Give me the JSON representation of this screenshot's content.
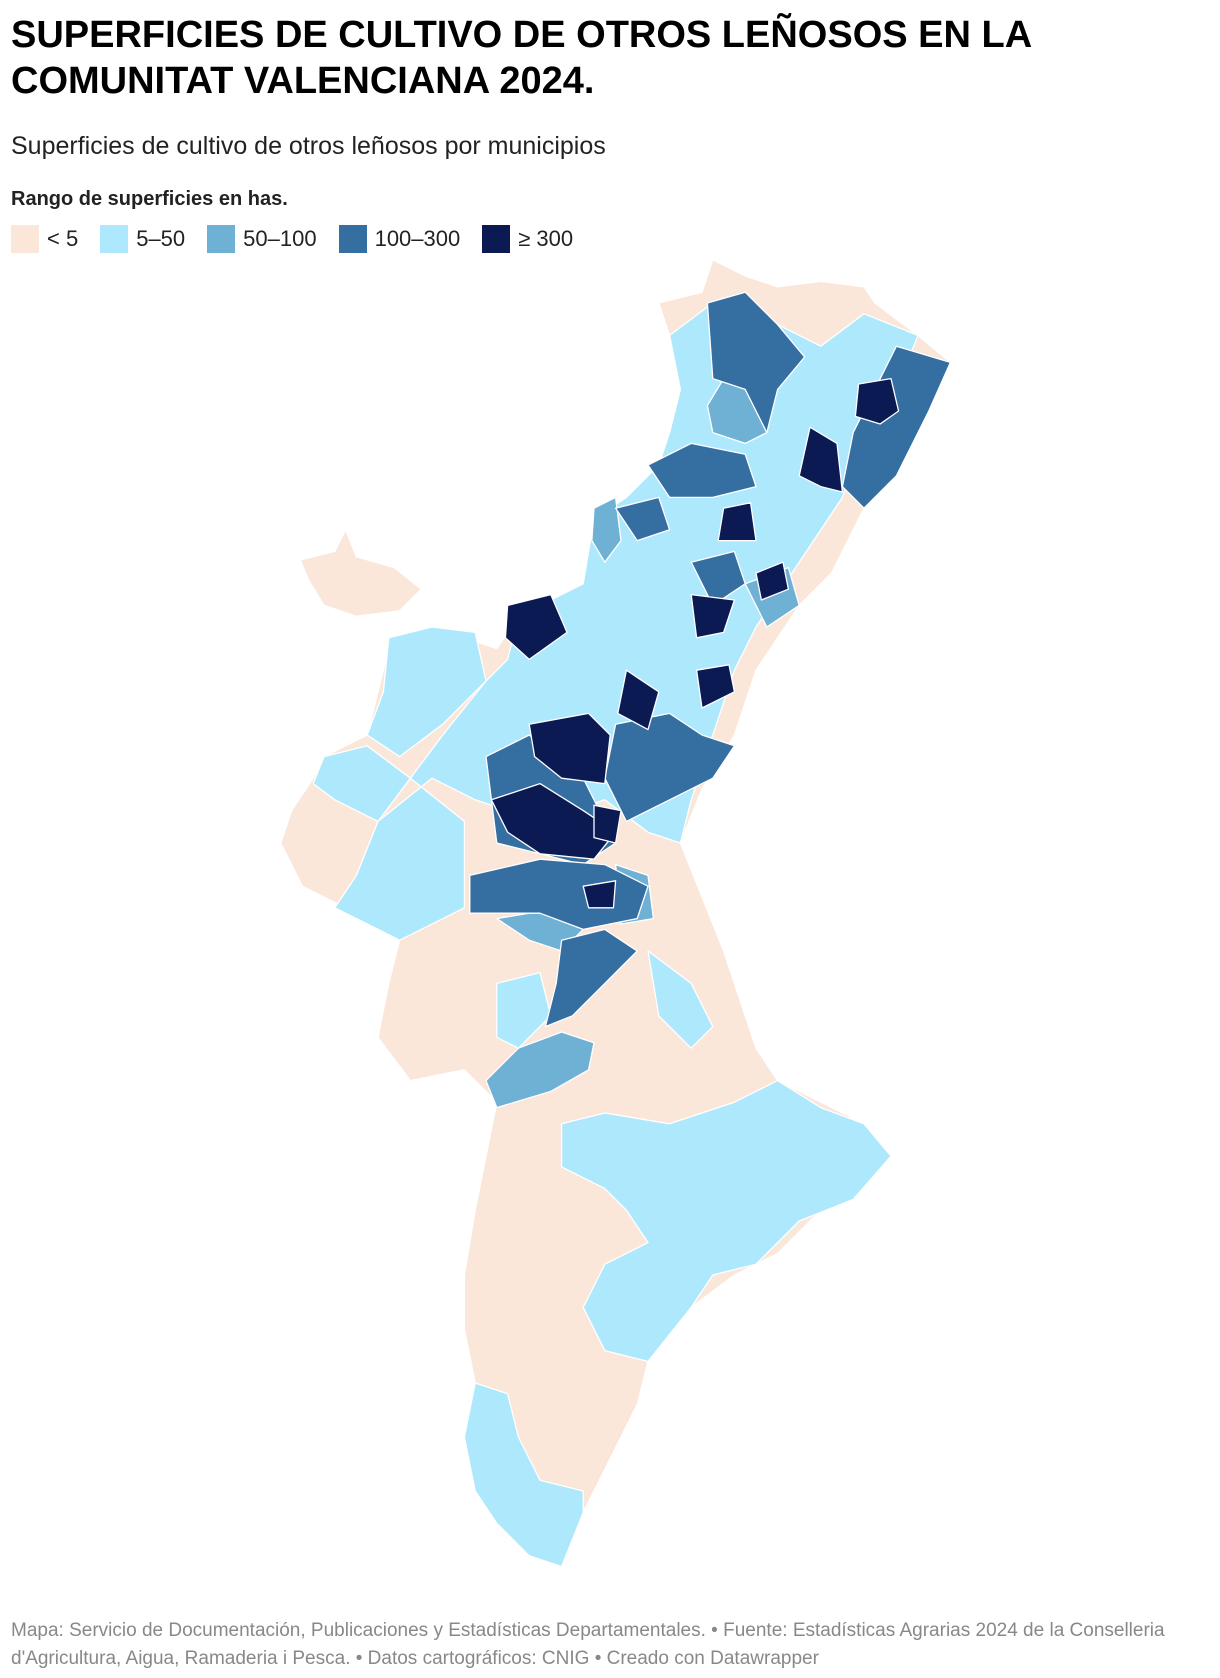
{
  "header": {
    "title": "SUPERFICIES DE CULTIVO DE OTROS LEÑOSOS EN LA COMUNITAT VALENCIANA 2024.",
    "subtitle": "Superficies de cultivo de otros leñosos por municipios"
  },
  "legend": {
    "title": "Rango de superficies en has.",
    "items": [
      {
        "label": "< 5",
        "color": "#fbe6da"
      },
      {
        "label": "5–50",
        "color": "#aee8fc"
      },
      {
        "label": "50–100",
        "color": "#6fb1d4"
      },
      {
        "label": "100–300",
        "color": "#356ea0"
      },
      {
        "label": "≥ 300",
        "color": "#0b1a52"
      }
    ]
  },
  "footer": {
    "text": "Mapa: Servicio de Documentación, Publicaciones y Estadísticas Departamentales. • Fuente: Estadísticas Agrarias 2024 de la Conselleria d'Agricultura, Aigua, Ramaderia i Pesca. • Datos cartográficos: CNIG  • Creado con Datawrapper"
  }
}
